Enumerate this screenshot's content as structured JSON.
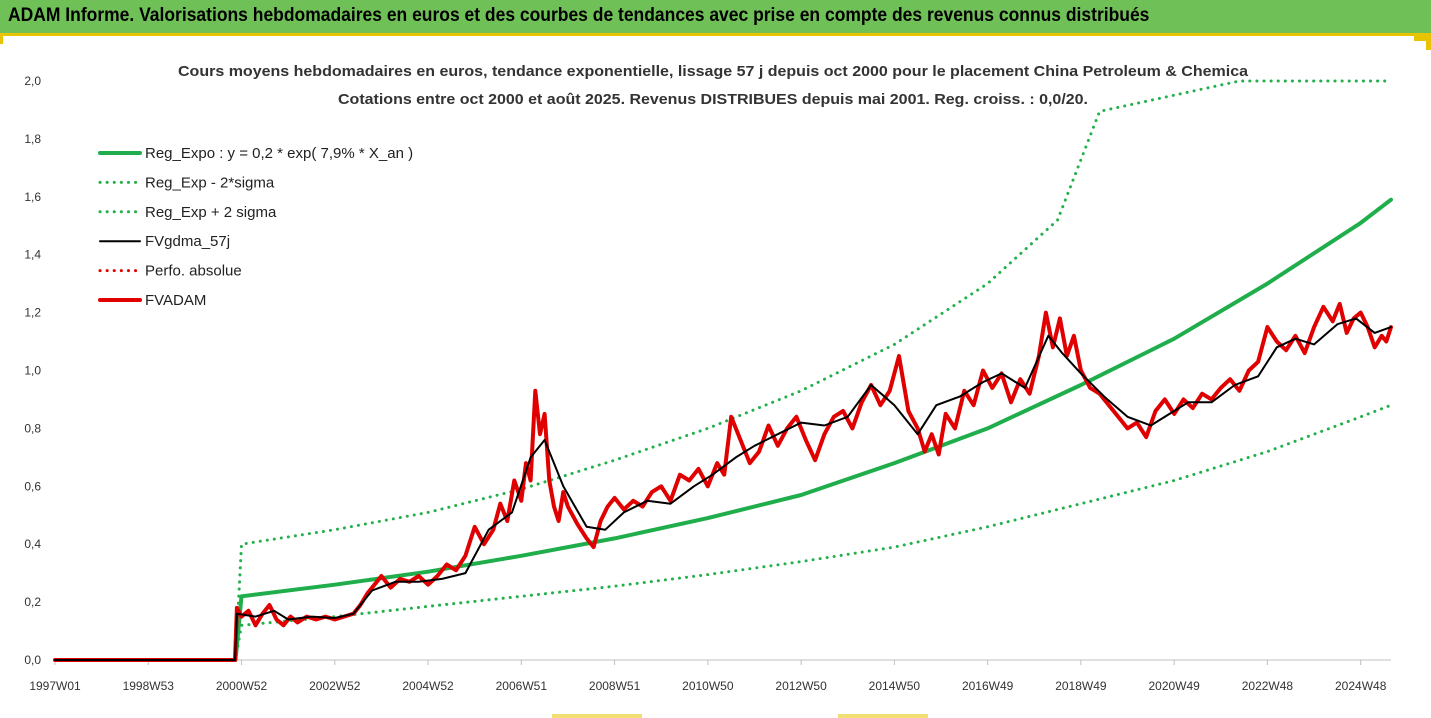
{
  "header": {
    "title": "ADAM Informe. Valorisations hebdomadaires en euros et des courbes de tendances avec prise en compte des revenus connus distribués"
  },
  "colors": {
    "header_bg": "#70c058",
    "accent_yellow": "#e8c400",
    "trend_green": "#1fae4b",
    "dotted_green": "#22b04b",
    "smoothed_black": "#000000",
    "price_red": "#e00000"
  },
  "chart_data": {
    "type": "line",
    "title": "Cours moyens hebdomadaires en euros, tendance exponentielle, lissage 57 j depuis oct 2000 pour le placement China Petroleum & Chemica",
    "subtitle": "Cotations entre oct 2000 et août 2025.  Revenus DISTRIBUES depuis mai 2001. Reg. croiss. : 0,0/20.",
    "xlabel": "",
    "ylabel": "",
    "ylim": [
      0,
      2.0
    ],
    "xlim": [
      1997.0,
      2025.65
    ],
    "grid": false,
    "legend_position": "top-left",
    "y_ticks": [
      "0,0",
      "0,2",
      "0,4",
      "0,6",
      "0,8",
      "1,0",
      "1,2",
      "1,4",
      "1,6",
      "1,8",
      "2,0"
    ],
    "x_ticks": [
      {
        "label": "1997W01",
        "x": 1997.0
      },
      {
        "label": "1998W53",
        "x": 1999.0
      },
      {
        "label": "2000W52",
        "x": 2001.0
      },
      {
        "label": "2002W52",
        "x": 2003.0
      },
      {
        "label": "2004W52",
        "x": 2005.0
      },
      {
        "label": "2006W51",
        "x": 2007.0
      },
      {
        "label": "2008W51",
        "x": 2009.0
      },
      {
        "label": "2010W50",
        "x": 2011.0
      },
      {
        "label": "2012W50",
        "x": 2013.0
      },
      {
        "label": "2014W50",
        "x": 2015.0
      },
      {
        "label": "2016W49",
        "x": 2017.0
      },
      {
        "label": "2018W49",
        "x": 2019.0
      },
      {
        "label": "2020W49",
        "x": 2021.0
      },
      {
        "label": "2022W48",
        "x": 2023.0
      },
      {
        "label": "2024W48",
        "x": 2025.0
      }
    ],
    "legend": [
      {
        "label": "Reg_Expo : y = 0,2 * exp( 7,9% *  X_an )",
        "series": "reg_expo"
      },
      {
        "label": "Reg_Exp - 2*sigma",
        "series": "reg_minus"
      },
      {
        "label": "Reg_Exp + 2 sigma",
        "series": "reg_plus"
      },
      {
        "label": "FVgdma_57j",
        "series": "fvgdma"
      },
      {
        "label": "Perfo. absolue",
        "series": "perfo"
      },
      {
        "label": "FVADAM",
        "series": "fvadam"
      }
    ],
    "series": [
      {
        "id": "reg_expo",
        "name": "Reg_Expo : y = 0,2 * exp( 7,9% *  X_an )",
        "style": "solid-thick",
        "color": "#1fae4b",
        "x": [
          2000.87,
          2001.0,
          2003.0,
          2005.0,
          2007.0,
          2009.0,
          2011.0,
          2013.0,
          2015.0,
          2017.0,
          2019.0,
          2021.0,
          2023.0,
          2025.0,
          2025.65
        ],
        "y": [
          0,
          0.22,
          0.26,
          0.305,
          0.36,
          0.42,
          0.49,
          0.57,
          0.68,
          0.8,
          0.95,
          1.11,
          1.3,
          1.51,
          1.59
        ]
      },
      {
        "id": "reg_minus",
        "name": "Reg_Exp - 2*sigma",
        "style": "dotted",
        "color": "#22b04b",
        "x": [
          2000.87,
          2001.0,
          2003.0,
          2005.0,
          2007.0,
          2009.0,
          2011.0,
          2013.0,
          2015.0,
          2017.0,
          2019.0,
          2021.0,
          2023.0,
          2025.0,
          2025.65
        ],
        "y": [
          0,
          0.12,
          0.15,
          0.185,
          0.22,
          0.255,
          0.295,
          0.34,
          0.39,
          0.46,
          0.54,
          0.62,
          0.72,
          0.84,
          0.88
        ]
      },
      {
        "id": "reg_plus",
        "name": "Reg_Exp + 2 sigma",
        "style": "dotted",
        "color": "#22b04b",
        "x": [
          2000.87,
          2001.0,
          2003.0,
          2005.0,
          2007.0,
          2009.0,
          2011.0,
          2013.0,
          2015.0,
          2017.0,
          2018.5,
          2019.4,
          2022.4,
          2025.65
        ],
        "y": [
          0,
          0.4,
          0.45,
          0.51,
          0.59,
          0.69,
          0.8,
          0.93,
          1.09,
          1.3,
          1.52,
          1.895,
          2.0,
          2.0
        ]
      },
      {
        "id": "fvgdma",
        "name": "FVgdma_57j",
        "style": "solid",
        "color": "#000000",
        "x": [
          1997.0,
          2000.86,
          2000.9,
          2001.3,
          2001.7,
          2002.0,
          2002.5,
          2003.0,
          2003.4,
          2003.8,
          2004.3,
          2004.8,
          2005.3,
          2005.8,
          2006.3,
          2006.8,
          2007.2,
          2007.5,
          2007.9,
          2008.4,
          2008.8,
          2009.2,
          2009.7,
          2010.2,
          2010.7,
          2011.1,
          2011.6,
          2012.0,
          2012.5,
          2013.0,
          2013.5,
          2014.0,
          2014.5,
          2015.0,
          2015.5,
          2015.9,
          2016.4,
          2016.9,
          2017.3,
          2017.8,
          2018.3,
          2018.6,
          2019.0,
          2019.5,
          2020.0,
          2020.5,
          2020.9,
          2021.3,
          2021.8,
          2022.3,
          2022.8,
          2023.2,
          2023.6,
          2024.0,
          2024.5,
          2024.9,
          2025.3,
          2025.65
        ],
        "y": [
          0,
          0,
          0.16,
          0.15,
          0.17,
          0.14,
          0.15,
          0.145,
          0.16,
          0.24,
          0.27,
          0.27,
          0.28,
          0.3,
          0.45,
          0.51,
          0.7,
          0.76,
          0.6,
          0.46,
          0.45,
          0.51,
          0.55,
          0.54,
          0.6,
          0.64,
          0.7,
          0.74,
          0.78,
          0.82,
          0.81,
          0.84,
          0.95,
          0.88,
          0.78,
          0.88,
          0.91,
          0.96,
          0.99,
          0.94,
          1.12,
          1.06,
          0.99,
          0.91,
          0.84,
          0.81,
          0.85,
          0.89,
          0.89,
          0.95,
          0.98,
          1.08,
          1.11,
          1.09,
          1.16,
          1.18,
          1.13,
          1.15
        ]
      },
      {
        "id": "perfo",
        "name": "Perfo. absolue",
        "style": "dotted",
        "color": "#e00000",
        "x": [
          1997.0,
          2000.86
        ],
        "y": [
          0,
          0
        ]
      },
      {
        "id": "fvadam",
        "name": "FVADAM",
        "style": "solid-thick",
        "color": "#e00000",
        "x": [
          1997.0,
          2000.86,
          2000.9,
          2001.0,
          2001.15,
          2001.3,
          2001.45,
          2001.6,
          2001.75,
          2001.9,
          2002.05,
          2002.2,
          2002.4,
          2002.6,
          2002.8,
          2003.0,
          2003.2,
          2003.4,
          2003.55,
          2003.7,
          2003.85,
          2004.0,
          2004.2,
          2004.4,
          2004.6,
          2004.8,
          2005.0,
          2005.2,
          2005.4,
          2005.6,
          2005.8,
          2006.0,
          2006.2,
          2006.4,
          2006.55,
          2006.7,
          2006.85,
          2007.0,
          2007.1,
          2007.2,
          2007.3,
          2007.4,
          2007.5,
          2007.6,
          2007.7,
          2007.8,
          2007.9,
          2008.0,
          2008.2,
          2008.4,
          2008.55,
          2008.7,
          2008.85,
          2009.0,
          2009.2,
          2009.4,
          2009.6,
          2009.8,
          2010.0,
          2010.2,
          2010.4,
          2010.6,
          2010.8,
          2011.0,
          2011.2,
          2011.35,
          2011.5,
          2011.7,
          2011.9,
          2012.1,
          2012.3,
          2012.5,
          2012.7,
          2012.9,
          2013.1,
          2013.3,
          2013.5,
          2013.7,
          2013.9,
          2014.1,
          2014.3,
          2014.5,
          2014.7,
          2014.9,
          2015.1,
          2015.3,
          2015.5,
          2015.65,
          2015.8,
          2015.95,
          2016.1,
          2016.3,
          2016.5,
          2016.7,
          2016.9,
          2017.1,
          2017.3,
          2017.5,
          2017.7,
          2017.9,
          2018.1,
          2018.25,
          2018.4,
          2018.55,
          2018.7,
          2018.85,
          2019.0,
          2019.2,
          2019.4,
          2019.6,
          2019.8,
          2020.0,
          2020.2,
          2020.4,
          2020.6,
          2020.8,
          2021.0,
          2021.2,
          2021.4,
          2021.6,
          2021.8,
          2022.0,
          2022.2,
          2022.4,
          2022.6,
          2022.8,
          2023.0,
          2023.2,
          2023.4,
          2023.6,
          2023.8,
          2024.0,
          2024.2,
          2024.4,
          2024.55,
          2024.7,
          2024.85,
          2025.0,
          2025.15,
          2025.3,
          2025.45,
          2025.55,
          2025.65
        ],
        "y": [
          0,
          0,
          0.18,
          0.15,
          0.17,
          0.12,
          0.16,
          0.19,
          0.14,
          0.12,
          0.15,
          0.13,
          0.15,
          0.14,
          0.15,
          0.14,
          0.15,
          0.16,
          0.19,
          0.23,
          0.26,
          0.29,
          0.25,
          0.28,
          0.27,
          0.29,
          0.26,
          0.29,
          0.33,
          0.31,
          0.36,
          0.46,
          0.4,
          0.45,
          0.54,
          0.48,
          0.62,
          0.55,
          0.68,
          0.62,
          0.93,
          0.78,
          0.85,
          0.62,
          0.53,
          0.48,
          0.58,
          0.53,
          0.47,
          0.42,
          0.39,
          0.48,
          0.53,
          0.56,
          0.52,
          0.55,
          0.53,
          0.58,
          0.6,
          0.55,
          0.64,
          0.62,
          0.66,
          0.6,
          0.68,
          0.64,
          0.84,
          0.76,
          0.68,
          0.72,
          0.81,
          0.74,
          0.8,
          0.84,
          0.76,
          0.69,
          0.78,
          0.84,
          0.86,
          0.8,
          0.89,
          0.95,
          0.88,
          0.93,
          1.05,
          0.86,
          0.8,
          0.72,
          0.78,
          0.71,
          0.85,
          0.8,
          0.93,
          0.88,
          1.0,
          0.94,
          0.99,
          0.89,
          0.97,
          0.92,
          1.05,
          1.2,
          1.08,
          1.18,
          1.05,
          1.12,
          1.0,
          0.94,
          0.92,
          0.88,
          0.84,
          0.8,
          0.82,
          0.77,
          0.86,
          0.9,
          0.85,
          0.9,
          0.87,
          0.92,
          0.9,
          0.94,
          0.97,
          0.93,
          1.0,
          1.03,
          1.15,
          1.1,
          1.07,
          1.12,
          1.06,
          1.15,
          1.22,
          1.17,
          1.23,
          1.13,
          1.18,
          1.2,
          1.15,
          1.08,
          1.12,
          1.1,
          1.15
        ]
      }
    ]
  }
}
